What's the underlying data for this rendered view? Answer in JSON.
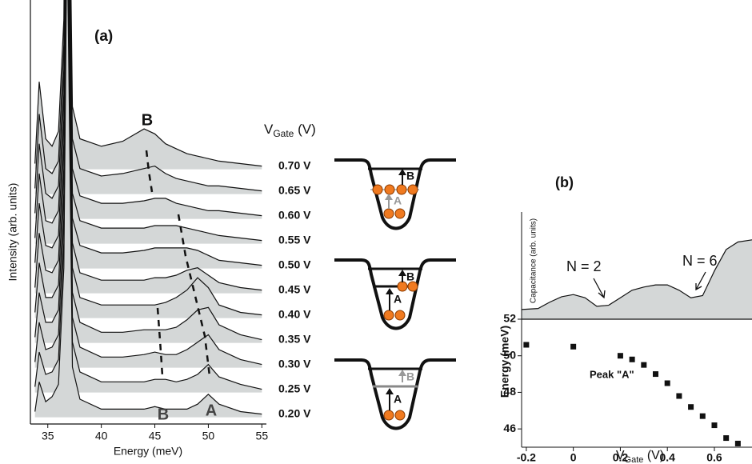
{
  "chart_data": [
    {
      "type": "line",
      "panel_label": "(a)",
      "xlabel": "Energy (meV)",
      "ylabel": "Intensity (arb. units)",
      "legend_title": [
        "V",
        "Gate",
        " (V)"
      ],
      "annotations": [
        "B",
        "B",
        "A"
      ],
      "fill": "#d4d7d7",
      "color": "#111111",
      "xlim": [
        33.6,
        55.2
      ],
      "xticks": [
        35,
        40,
        45,
        50,
        55
      ],
      "ylim": [
        0,
        17
      ],
      "x": [
        33.8,
        34.2,
        34.8,
        35.4,
        36.0,
        36.5,
        36.8,
        37.3,
        38,
        40,
        42,
        44,
        45,
        46,
        47,
        48,
        49,
        50,
        51,
        53,
        55
      ],
      "series": [
        {
          "name": "0.70 V",
          "values": [
            10.5,
            13.8,
            11.5,
            11.2,
            11.8,
            16.3,
            30.3,
            12.8,
            11.5,
            11.2,
            11.4,
            11.9,
            11.7,
            11.3,
            11.1,
            10.9,
            10.8,
            10.7,
            10.6,
            10.5,
            10.4
          ]
        },
        {
          "name": "0.65 V",
          "values": [
            9.5,
            12.5,
            10.3,
            10.1,
            10.6,
            15.3,
            29.3,
            11.5,
            10.3,
            10.0,
            10.1,
            10.3,
            10.4,
            10.1,
            9.9,
            9.8,
            9.7,
            9.6,
            9.6,
            9.5,
            9.4
          ]
        },
        {
          "name": "0.60 V",
          "values": [
            8.5,
            11.3,
            9.3,
            9.1,
            9.6,
            14.3,
            28.3,
            10.3,
            9.2,
            8.9,
            8.9,
            9.0,
            9.1,
            9.1,
            8.9,
            8.8,
            8.7,
            8.6,
            8.6,
            8.5,
            8.4
          ]
        },
        {
          "name": "0.55 V",
          "values": [
            7.5,
            10.1,
            8.2,
            8.1,
            8.6,
            13.3,
            27.3,
            9.3,
            8.2,
            7.9,
            7.9,
            7.9,
            8.0,
            8.0,
            8.0,
            7.9,
            7.8,
            7.7,
            7.6,
            7.5,
            7.4
          ]
        },
        {
          "name": "0.50 V",
          "values": [
            6.5,
            8.9,
            7.2,
            7.1,
            7.6,
            12.3,
            26.3,
            8.3,
            7.2,
            6.9,
            6.9,
            7.0,
            7.1,
            7.1,
            7.1,
            7.1,
            7.0,
            6.8,
            6.6,
            6.5,
            6.4
          ]
        },
        {
          "name": "0.45 V",
          "values": [
            5.5,
            7.7,
            6.2,
            6.1,
            6.6,
            11.3,
            25.3,
            7.3,
            6.1,
            5.8,
            5.8,
            5.8,
            5.9,
            5.9,
            6.0,
            6.2,
            6.3,
            6.0,
            5.7,
            5.5,
            5.4
          ]
        },
        {
          "name": "0.40 V",
          "values": [
            4.5,
            6.5,
            5.1,
            5.1,
            5.6,
            10.3,
            24.3,
            6.3,
            5.1,
            4.8,
            4.8,
            4.8,
            4.8,
            4.9,
            5.1,
            5.4,
            5.9,
            5.5,
            4.8,
            4.5,
            4.4
          ]
        },
        {
          "name": "0.35 V",
          "values": [
            3.5,
            5.3,
            4.1,
            4.1,
            4.6,
            9.3,
            23.3,
            5.3,
            4.1,
            3.7,
            3.7,
            3.8,
            3.8,
            3.8,
            3.9,
            4.2,
            4.6,
            4.7,
            4.0,
            3.6,
            3.4
          ]
        },
        {
          "name": "0.30 V",
          "values": [
            2.5,
            4.1,
            3.0,
            3.1,
            3.6,
            8.3,
            22.3,
            4.3,
            3.1,
            2.7,
            2.7,
            2.8,
            2.9,
            2.8,
            2.8,
            3.0,
            3.3,
            3.6,
            3.0,
            2.6,
            2.4
          ]
        },
        {
          "name": "0.25 V",
          "values": [
            1.5,
            2.9,
            2.0,
            2.1,
            2.6,
            7.3,
            21.3,
            3.3,
            2.1,
            1.7,
            1.7,
            1.7,
            1.8,
            1.8,
            1.7,
            1.8,
            2.0,
            2.4,
            1.9,
            1.6,
            1.4
          ]
        },
        {
          "name": "0.20 V",
          "values": [
            0.5,
            1.7,
            0.9,
            1.1,
            1.6,
            6.3,
            20.3,
            2.3,
            1.0,
            0.6,
            0.6,
            0.6,
            0.7,
            0.6,
            0.6,
            0.6,
            0.8,
            1.2,
            0.8,
            0.5,
            0.4
          ]
        }
      ]
    },
    {
      "type": "area",
      "panel_label": "(b)",
      "ylabel": "Capacitance (arb. units)",
      "annotations": [
        "N = 2",
        "N = 6"
      ],
      "fill": "#d4d7d7",
      "color": "#111111",
      "xlim": [
        -0.22,
        0.76
      ],
      "ylim": [
        0,
        10
      ],
      "x": [
        -0.22,
        -0.15,
        -0.1,
        -0.05,
        0,
        0.05,
        0.1,
        0.15,
        0.2,
        0.25,
        0.3,
        0.35,
        0.4,
        0.45,
        0.5,
        0.55,
        0.6,
        0.65,
        0.7,
        0.76
      ],
      "values": [
        0.9,
        1.0,
        1.6,
        2.1,
        2.3,
        2.0,
        1.2,
        1.3,
        2.0,
        2.7,
        3.0,
        3.2,
        3.2,
        2.7,
        2.0,
        2.2,
        4.5,
        6.5,
        7.2,
        7.4
      ]
    },
    {
      "type": "scatter",
      "ylabel": "Energy (meV)",
      "xlabel": [
        "V",
        "Gate",
        " (V)"
      ],
      "annotations": [
        "Peak \"A\""
      ],
      "color": "#111111",
      "xlim": [
        -0.22,
        0.76
      ],
      "xticks": [
        -0.2,
        0.0,
        0.2,
        0.4,
        0.6
      ],
      "ylim": [
        45,
        52
      ],
      "yticks": [
        46,
        48,
        50,
        52
      ],
      "x": [
        -0.2,
        0.0,
        0.2,
        0.25,
        0.3,
        0.35,
        0.4,
        0.45,
        0.5,
        0.55,
        0.6,
        0.65,
        0.7
      ],
      "values": [
        50.6,
        50.5,
        50.0,
        49.8,
        49.5,
        49.0,
        48.5,
        47.8,
        47.2,
        46.7,
        46.2,
        45.5,
        45.2
      ]
    }
  ],
  "diagrams": [
    {
      "upper": "B",
      "lower": "A"
    },
    {
      "upper": "B",
      "lower": "A"
    },
    {
      "upper": "B",
      "lower": "A"
    }
  ]
}
